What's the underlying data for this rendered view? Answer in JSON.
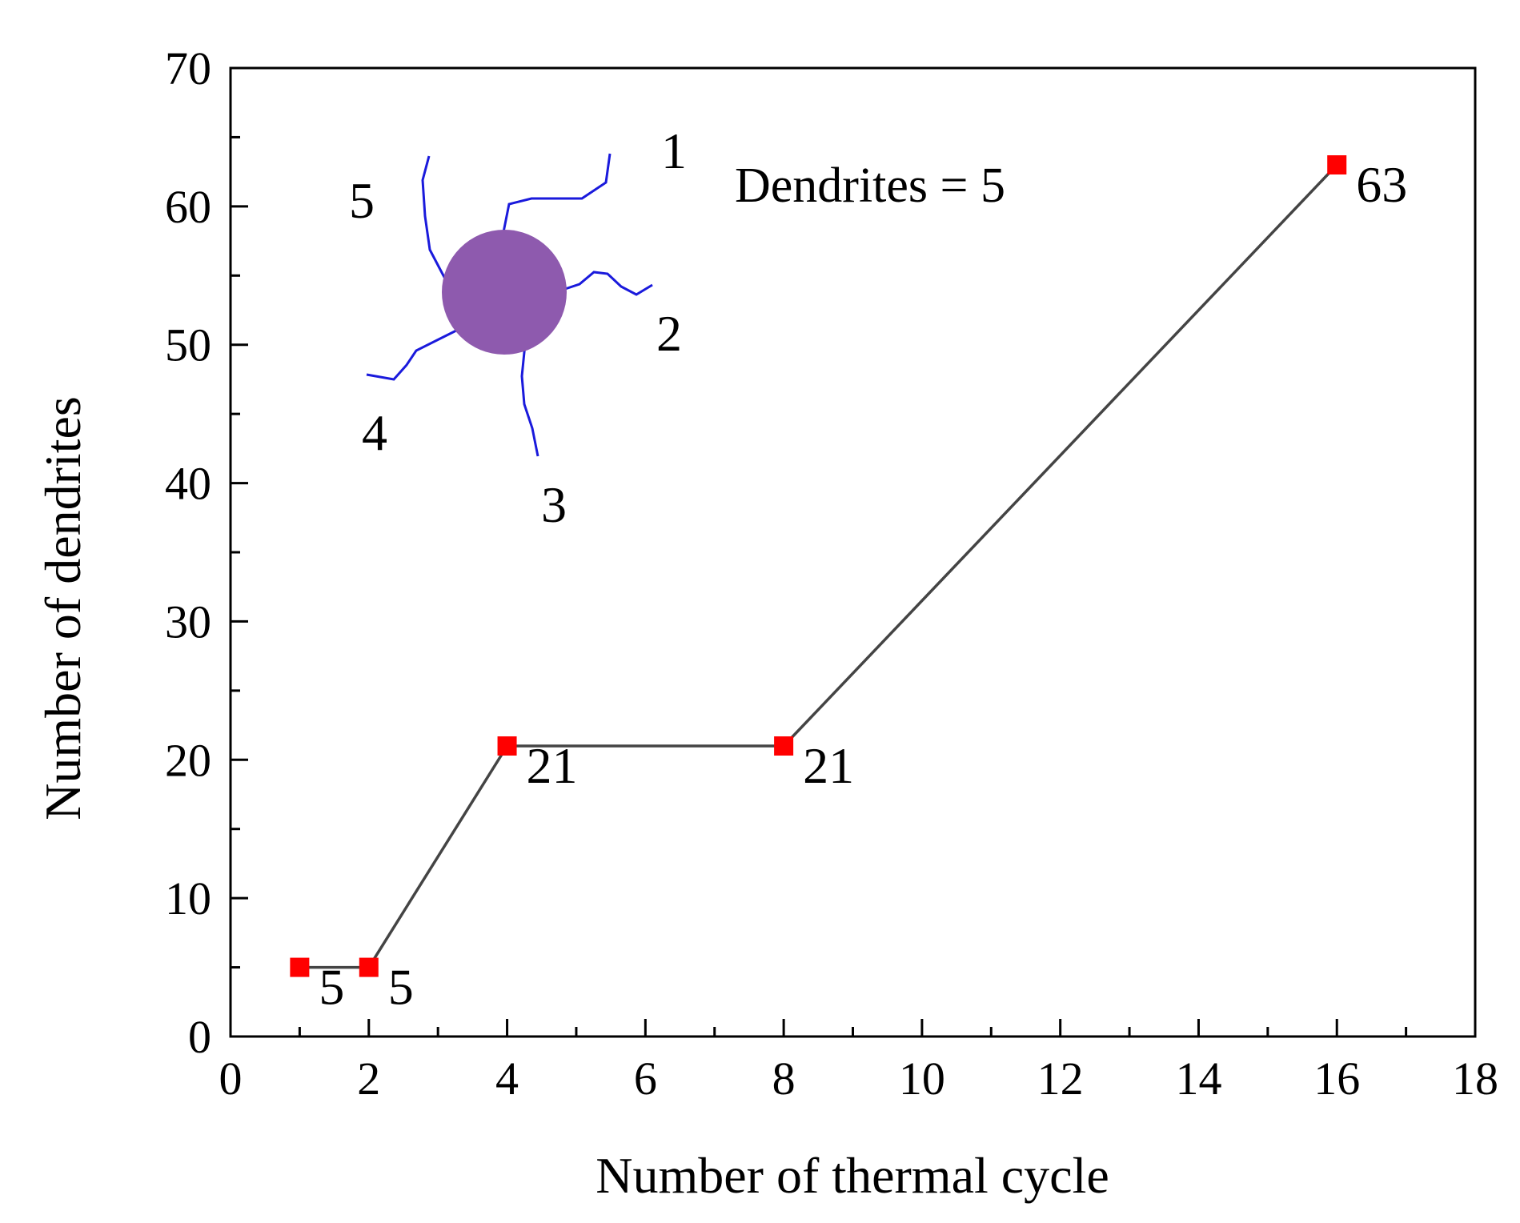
{
  "chart_data": {
    "type": "line",
    "title": "",
    "xlabel": "Number of thermal cycle",
    "ylabel": "Number of dendrites",
    "xlim": [
      0,
      18
    ],
    "ylim": [
      0,
      70
    ],
    "x_ticks": [
      0,
      2,
      4,
      6,
      8,
      10,
      12,
      14,
      16,
      18
    ],
    "x_tick_labels": [
      "0",
      "2",
      "4",
      "6",
      "8",
      "10",
      "12",
      "14",
      "16",
      "18"
    ],
    "y_ticks": [
      0,
      10,
      20,
      30,
      40,
      50,
      60,
      70
    ],
    "y_tick_labels": [
      "0",
      "10",
      "20",
      "30",
      "40",
      "50",
      "60",
      "70"
    ],
    "grid": false,
    "series": [
      {
        "name": "dendrites",
        "line_color": "#444444",
        "marker_color": "#ff0000",
        "points": [
          {
            "x": 1,
            "y": 5,
            "label": "5"
          },
          {
            "x": 2,
            "y": 5,
            "label": "5"
          },
          {
            "x": 4,
            "y": 21,
            "label": "21"
          },
          {
            "x": 8,
            "y": 21,
            "label": "21"
          },
          {
            "x": 16,
            "y": 63,
            "label": "63"
          }
        ]
      }
    ],
    "annotation": {
      "text": "Dendrites = 5",
      "nucleus_color": "#8e5aae",
      "branch_color": "#1a1adc",
      "branch_labels": [
        "1",
        "2",
        "3",
        "4",
        "5"
      ]
    }
  }
}
